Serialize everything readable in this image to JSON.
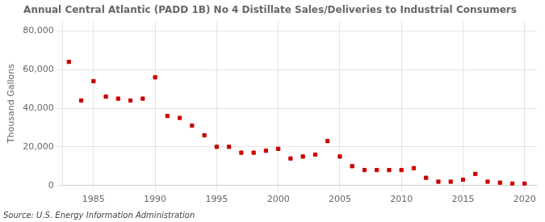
{
  "chart_data": {
    "type": "scatter",
    "title": "Annual Central Atlantic (PADD 1B) No 4 Distillate Sales/Deliveries to Industrial Consumers",
    "ylabel": "Thousand Gallons",
    "annotations": [
      "Source: U.S. Energy Information Administration"
    ],
    "x": [
      1983,
      1984,
      1985,
      1986,
      1987,
      1988,
      1989,
      1990,
      1991,
      1992,
      1993,
      1994,
      1995,
      1996,
      1997,
      1998,
      1999,
      2000,
      2001,
      2002,
      2003,
      2004,
      2005,
      2006,
      2007,
      2008,
      2009,
      2010,
      2011,
      2012,
      2013,
      2014,
      2015,
      2016,
      2017,
      2018,
      2019,
      2020
    ],
    "values": [
      64000,
      44000,
      54000,
      46000,
      45000,
      44000,
      45000,
      56000,
      36000,
      35000,
      31000,
      26000,
      20000,
      20000,
      17000,
      17000,
      18000,
      19000,
      14000,
      15000,
      16000,
      23000,
      15000,
      10000,
      8000,
      8000,
      8000,
      8000,
      9000,
      4000,
      2000,
      2000,
      3000,
      6000,
      2000,
      1500,
      1000,
      1000
    ],
    "color": "#cc0000",
    "marker": "square",
    "xlim": [
      1982.5,
      2021
    ],
    "ylim": [
      0,
      85000
    ],
    "xticks": [
      1985,
      1990,
      1995,
      2000,
      2005,
      2010,
      2015,
      2020
    ],
    "yticks": [
      0,
      {
        "value": 20000,
        "label": "20,000"
      },
      {
        "value": 40000,
        "label": "40,000"
      },
      {
        "value": 60000,
        "label": "60,000"
      },
      {
        "value": 80000,
        "label": "80,000"
      }
    ],
    "grid": true
  }
}
